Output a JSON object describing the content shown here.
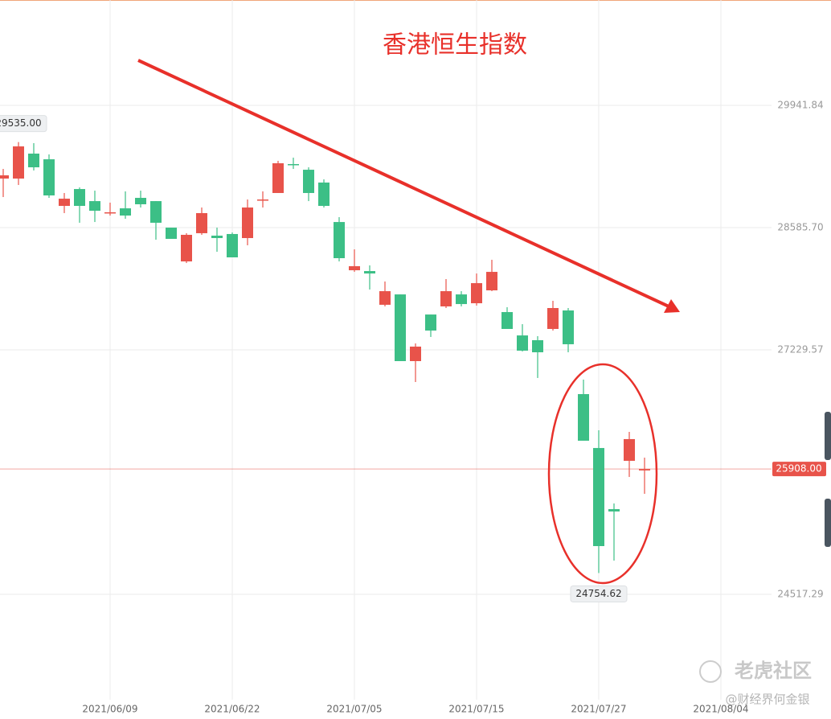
{
  "chart_data": {
    "type": "candlestick",
    "title": "香港恒生指数",
    "categories": [
      null,
      null,
      null,
      null,
      null,
      null,
      null,
      "2021/06/09",
      null,
      null,
      null,
      null,
      null,
      null,
      null,
      "2021/06/22",
      null,
      null,
      null,
      null,
      null,
      null,
      null,
      "2021/07/05",
      null,
      null,
      null,
      null,
      null,
      null,
      null,
      "2021/07/15",
      null,
      null,
      null,
      null,
      null,
      null,
      null,
      "2021/07/27",
      null,
      null,
      null,
      null,
      null,
      null,
      null,
      "2021/08/04"
    ],
    "open": [
      29130,
      29130,
      29407,
      29344,
      28827,
      29014,
      28880,
      28756,
      28800,
      28916,
      28880,
      28586,
      28211,
      28524,
      28497,
      28515,
      28470,
      28898,
      28970,
      29291,
      29228,
      29086,
      28648,
      28113,
      28104,
      27730,
      27845,
      27105,
      27622,
      27712,
      27845,
      27747,
      27890,
      27649,
      27390,
      27337,
      27462,
      27667,
      26739,
      26141,
      25463,
      25999,
      25892,
      null,
      null,
      null,
      null,
      null
    ],
    "high": [
      29237,
      29535,
      29523,
      29398,
      28970,
      29032,
      28996,
      28863,
      28988,
      28996,
      28880,
      28586,
      28524,
      28809,
      28586,
      28532,
      28898,
      28988,
      29327,
      29362,
      29255,
      29121,
      28702,
      28345,
      28167,
      27988,
      27845,
      27301,
      27622,
      28015,
      27881,
      28077,
      28229,
      27703,
      27515,
      27382,
      27774,
      27694,
      26900,
      26338,
      25526,
      26320,
      26034,
      null,
      null,
      null,
      null,
      null
    ],
    "low": [
      28925,
      29059,
      29220,
      28916,
      28747,
      28640,
      28648,
      28720,
      28684,
      28809,
      28452,
      28461,
      28193,
      28506,
      28318,
      28256,
      28390,
      28809,
      28970,
      29237,
      28880,
      28809,
      28211,
      28095,
      27899,
      27712,
      27105,
      26873,
      27373,
      27694,
      27712,
      27721,
      27881,
      27462,
      27212,
      26918,
      27444,
      27203,
      26222,
      24754.62,
      24892,
      25820,
      25633,
      null,
      null,
      null,
      null,
      null
    ],
    "close": [
      29166,
      29487,
      29255,
      28943,
      28907,
      28827,
      28773,
      28756,
      28720,
      28845,
      28640,
      28461,
      28506,
      28747,
      28470,
      28256,
      28809,
      28898,
      29300,
      29282,
      28970,
      28827,
      28247,
      28158,
      28077,
      27881,
      27105,
      27266,
      27444,
      27881,
      27738,
      27970,
      28095,
      27462,
      27221,
      27203,
      27694,
      27292,
      26222,
      25053,
      25437,
      26240,
      25908,
      null,
      null,
      null,
      null,
      null
    ],
    "high_value_labels": [
      null,
      "29535.00",
      null,
      null,
      null,
      null,
      null,
      null,
      null,
      null,
      null,
      null,
      null,
      null,
      null,
      null,
      null,
      null,
      null,
      null,
      null,
      null,
      null,
      null,
      null,
      null,
      null,
      null,
      null,
      null,
      null,
      null,
      null,
      null,
      null,
      null,
      null,
      null,
      null,
      null,
      null,
      null,
      null,
      null,
      null,
      null,
      null,
      null
    ],
    "low_value_labels": [
      null,
      null,
      null,
      null,
      null,
      null,
      null,
      null,
      null,
      null,
      null,
      null,
      null,
      null,
      null,
      null,
      null,
      null,
      null,
      null,
      null,
      null,
      null,
      null,
      null,
      null,
      null,
      null,
      null,
      null,
      null,
      null,
      null,
      null,
      null,
      null,
      null,
      null,
      null,
      "24754.62",
      null,
      null,
      null,
      null,
      null,
      null,
      null,
      null
    ],
    "close_value_labels": [
      null,
      null,
      null,
      null,
      null,
      null,
      null,
      null,
      null,
      null,
      null,
      null,
      null,
      null,
      null,
      null,
      null,
      null,
      null,
      null,
      null,
      null,
      null,
      null,
      null,
      null,
      null,
      null,
      null,
      null,
      null,
      null,
      null,
      null,
      null,
      null,
      null,
      null,
      null,
      null,
      null,
      null,
      "25908.00",
      null,
      null,
      null,
      null,
      null
    ],
    "up_color": "#e8534a",
    "down_color": "#3cbf86",
    "title_color": "#e8302a",
    "ylim": [
      23349,
      31111
    ],
    "yticks": [
      24517.29,
      27229.57,
      {
        "value": 28585.7,
        "label": "28585.70"
      },
      29941.84
    ],
    "grid": true,
    "watermark": {
      "name": "老虎社区",
      "author": "@财经界何金银"
    }
  }
}
